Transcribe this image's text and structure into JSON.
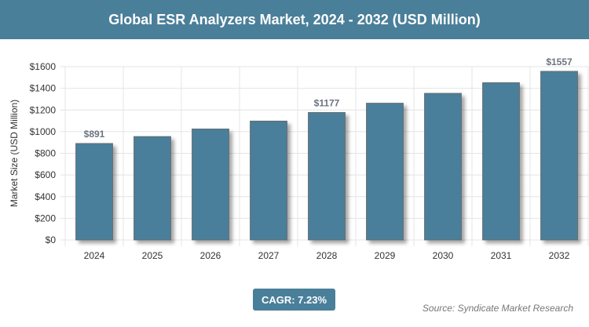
{
  "chart_data": {
    "type": "bar",
    "title": "Global ESR Analyzers Market, 2024 - 2032 (USD Million)",
    "xlabel": "",
    "ylabel": "Market Size (USD Million)",
    "categories": [
      "2024",
      "2025",
      "2026",
      "2027",
      "2028",
      "2029",
      "2030",
      "2031",
      "2032"
    ],
    "values": [
      891,
      955,
      1025,
      1098,
      1177,
      1263,
      1354,
      1452,
      1557
    ],
    "data_labels": {
      "0": "$891",
      "4": "$1177",
      "8": "$1557"
    },
    "ylim": [
      0,
      1600
    ],
    "yticks": [
      0,
      200,
      400,
      600,
      800,
      1000,
      1200,
      1400,
      1600
    ],
    "ytick_prefix": "$",
    "grid": true,
    "bar_color": "#4a7f9a"
  },
  "footer": {
    "cagr": "CAGR: 7.23%",
    "source": "Source: Syndicate Market Research"
  }
}
